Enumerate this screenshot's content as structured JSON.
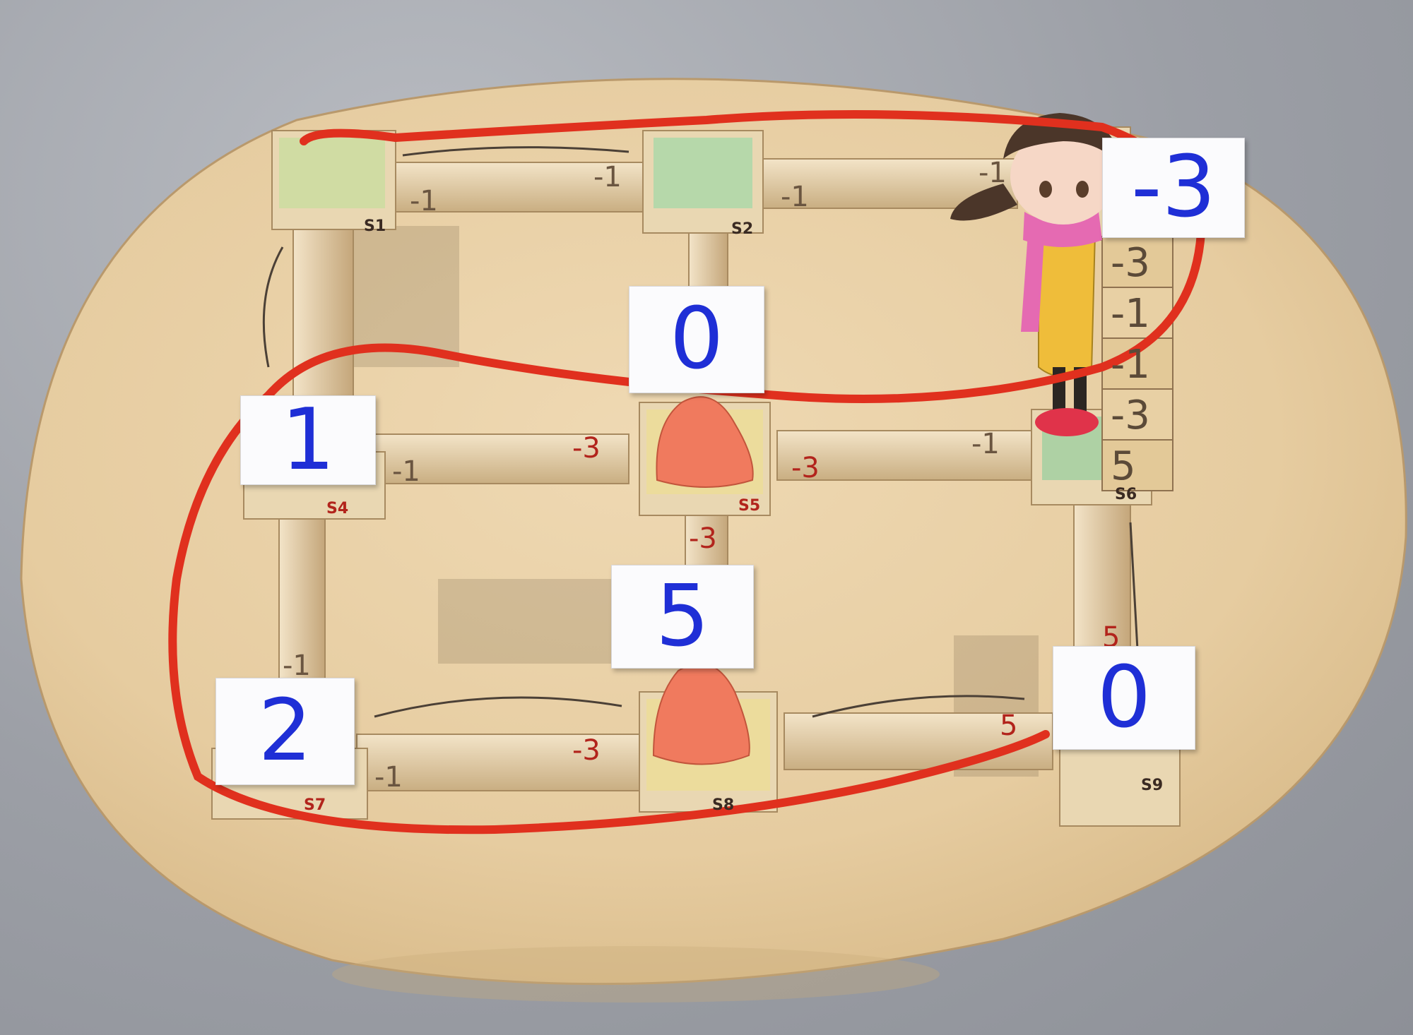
{
  "number_cards": {
    "top_center": "0",
    "top_right": "-3",
    "middle_left": "1",
    "lower_center": "5",
    "bottom_left": "2",
    "bottom_right": "0"
  },
  "square_tags": {
    "s1": "S1",
    "s2": "S2",
    "s4": "S4",
    "s5": "S5",
    "s6": "S6",
    "s7": "S7",
    "s8": "S8",
    "s9": "S9"
  },
  "plank_values": {
    "top_row_a_right": "-1",
    "top_row_a_left": "-1",
    "top_row_b_right": "-1",
    "top_row_b_left": "-1",
    "mid_row_a_right": "-3",
    "mid_row_a_left": "-1",
    "mid_row_b_right": "-1",
    "mid_row_b_left": "-3",
    "center_vertical": "-3",
    "left_vertical_bottom": "-1",
    "right_vertical": "5",
    "bottom_row_a_right": "-3",
    "bottom_row_a_left": "-1",
    "bottom_row_b_right": "5"
  },
  "stack_labels": [
    "-3",
    "-1",
    "-1",
    "-3",
    "5"
  ],
  "colors": {
    "card_digit": "#1f2fd6",
    "string": "#e0301e",
    "clay": "#f07a5e",
    "wood": "#e7cfa3"
  }
}
